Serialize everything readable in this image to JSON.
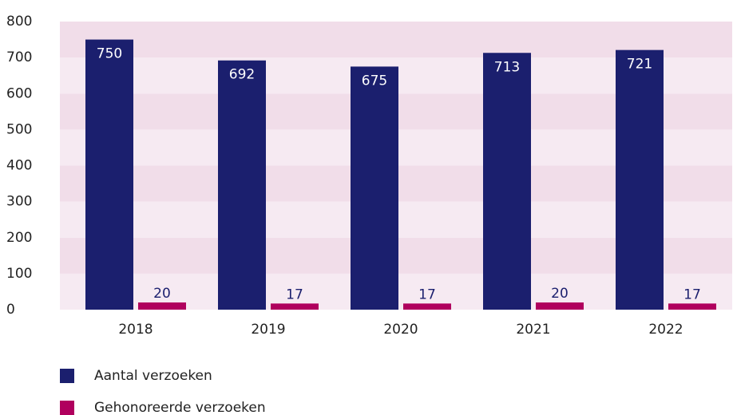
{
  "chart_data": {
    "type": "bar",
    "categories": [
      "2018",
      "2019",
      "2020",
      "2021",
      "2022"
    ],
    "series": [
      {
        "name": "Aantal verzoeken",
        "color": "#1b1f6e",
        "values": [
          750,
          692,
          675,
          713,
          721
        ]
      },
      {
        "name": "Gehonoreerde verzoeken",
        "color": "#b0005e",
        "values": [
          20,
          17,
          17,
          20,
          17
        ]
      }
    ],
    "ylim": [
      0,
      800
    ],
    "yticks": [
      0,
      100,
      200,
      300,
      400,
      500,
      600,
      700,
      800
    ],
    "grid": true
  }
}
